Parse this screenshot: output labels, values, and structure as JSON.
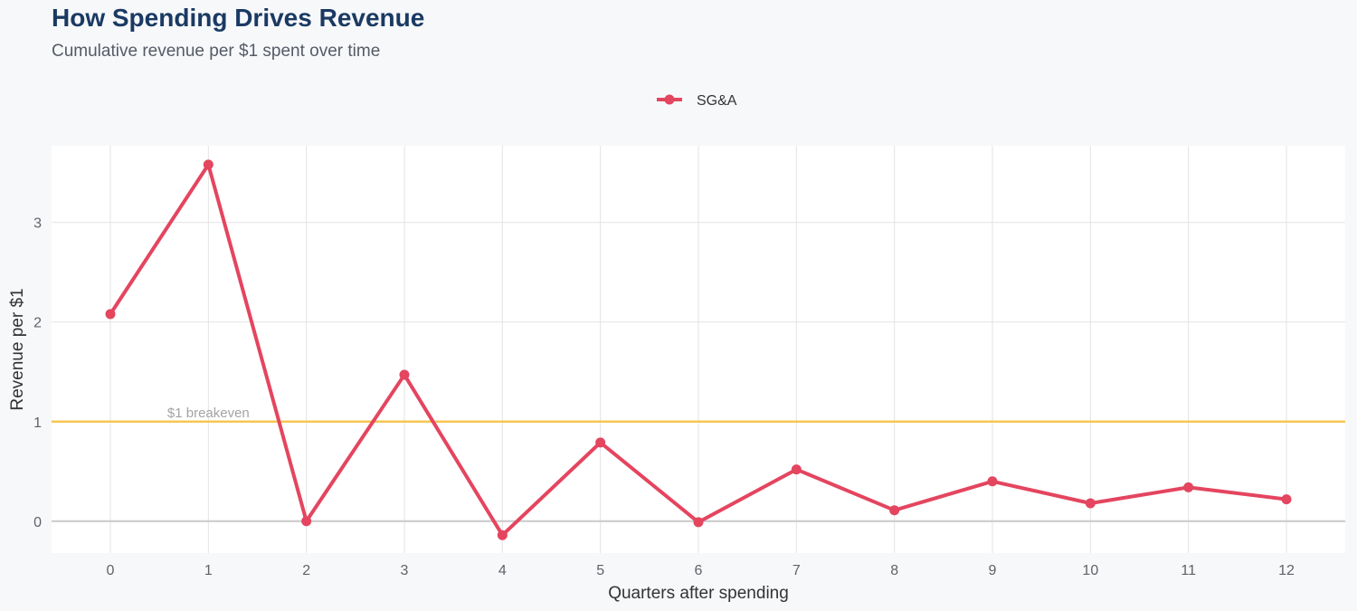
{
  "colors": {
    "series": "#e4455f",
    "reference_line": "#f5c653",
    "zero_line": "#c9c9c9",
    "grid": "#e3e3e3",
    "panel": "#ffffff",
    "title": "#1a3a63"
  },
  "chart_data": {
    "type": "line",
    "title": "How Spending Drives Revenue",
    "subtitle": "Cumulative revenue per $1 spent over time",
    "xlabel": "Quarters after spending",
    "ylabel": "Revenue per $1",
    "x": [
      0,
      1,
      2,
      3,
      4,
      5,
      6,
      7,
      8,
      9,
      10,
      11,
      12
    ],
    "x_ticks": [
      "0",
      "1",
      "2",
      "3",
      "4",
      "5",
      "6",
      "7",
      "8",
      "9",
      "10",
      "11",
      "12"
    ],
    "y_ticks": [
      "0",
      "1",
      "2",
      "3"
    ],
    "xlim": [
      -0.6,
      12.6
    ],
    "ylim": [
      -0.32,
      3.77
    ],
    "grid": true,
    "legend_position": "top-center",
    "series": [
      {
        "name": "SG&A",
        "values": [
          2.08,
          3.58,
          0.0,
          1.47,
          -0.14,
          0.79,
          -0.01,
          0.52,
          0.11,
          0.4,
          0.18,
          0.34,
          0.22
        ]
      }
    ],
    "reference_lines": [
      {
        "y": 1,
        "label": "$1 breakeven"
      },
      {
        "y": 0,
        "label": ""
      }
    ]
  }
}
